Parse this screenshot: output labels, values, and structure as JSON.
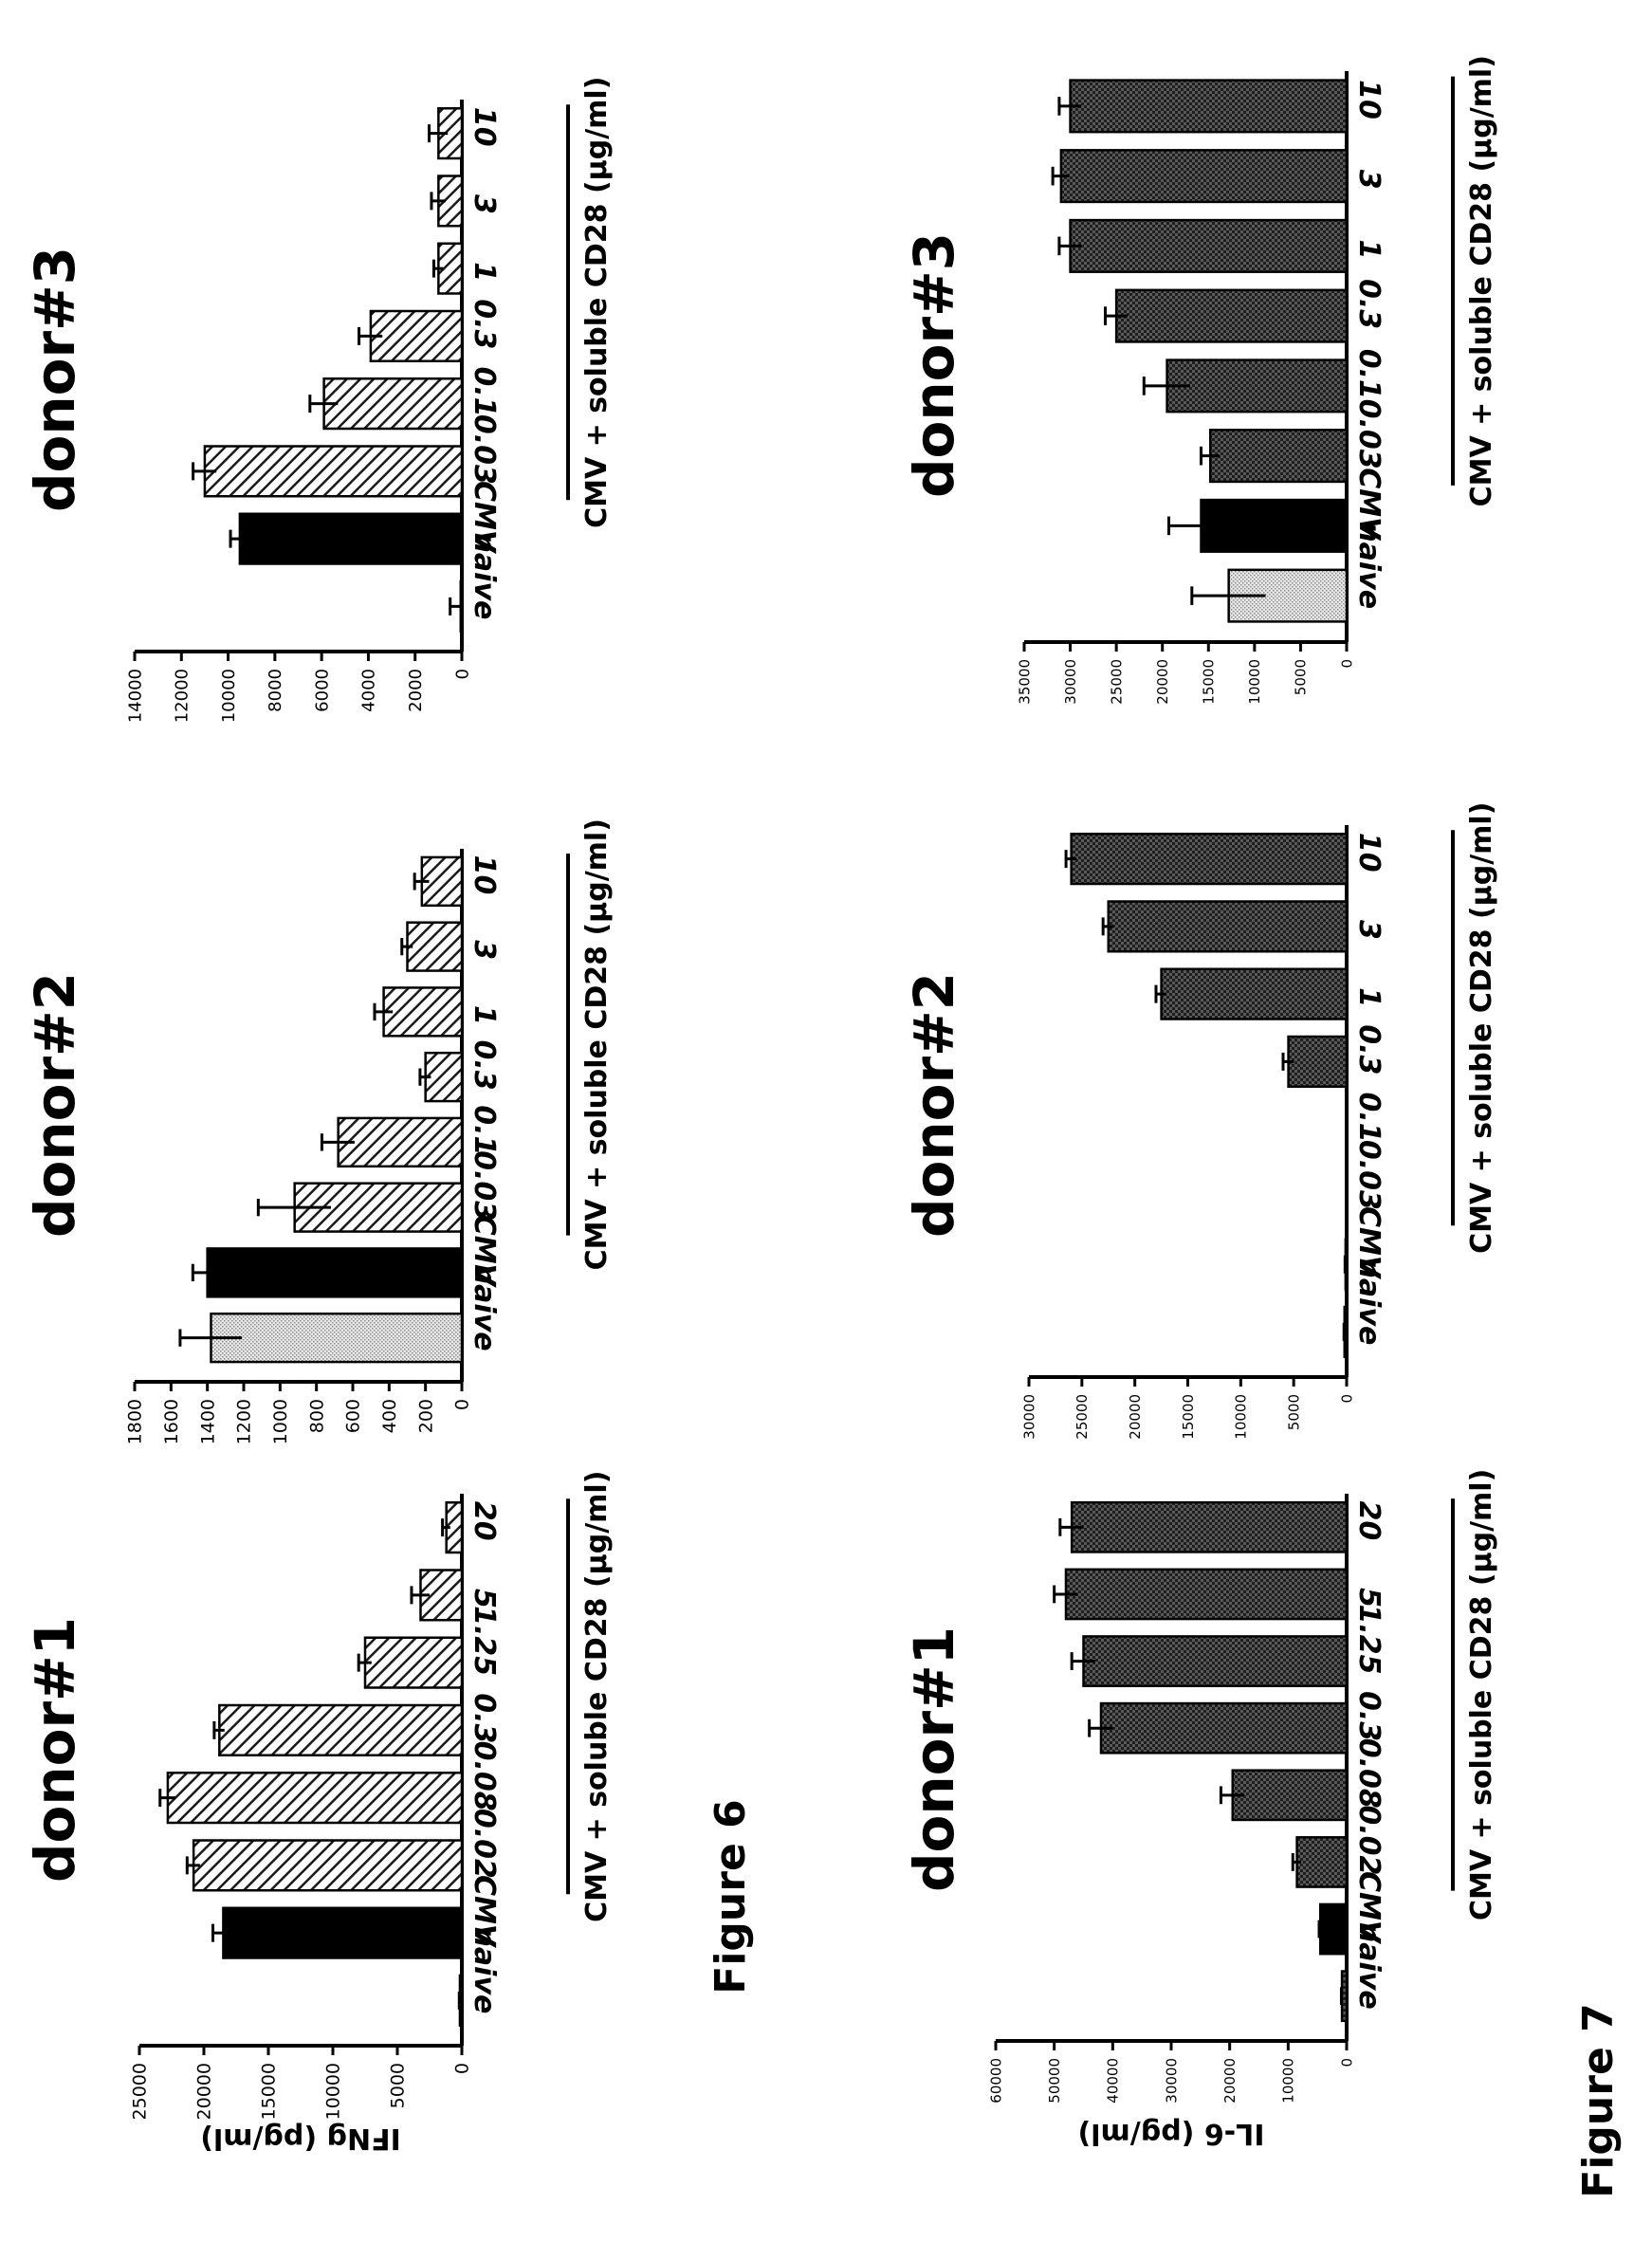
{
  "figures": [
    {
      "caption": "Figure 6"
    },
    {
      "caption": "Figure 7"
    }
  ],
  "colors": {
    "naive": "#d8d8d8",
    "cmv": "#000000",
    "hatch": "#555555",
    "dots": "#444444"
  },
  "chart_data": [
    {
      "type": "bar",
      "title": "donor#1",
      "ylabel": "IFNg (pg/ml)",
      "group_label": "CMV + soluble CD28 (µg/ml)",
      "categories": [
        "naive",
        "CMV",
        "0.02",
        "0.08",
        "0.3",
        "1.25",
        "5",
        "20"
      ],
      "values": [
        150,
        18500,
        20800,
        22800,
        18800,
        7500,
        3200,
        1200
      ],
      "errors": [
        50,
        800,
        500,
        600,
        400,
        500,
        700,
        300
      ],
      "ylim": [
        0,
        25000
      ],
      "yticks": [
        0,
        5000,
        10000,
        15000,
        20000,
        25000
      ],
      "pattern": "hatch",
      "styles": [
        "naive",
        "cmv",
        "hatch",
        "hatch",
        "hatch",
        "hatch",
        "hatch",
        "hatch"
      ]
    },
    {
      "type": "bar",
      "title": "donor#2",
      "ylabel": "",
      "group_label": "CMV + soluble CD28 (µg/ml)",
      "categories": [
        "naive",
        "CMV",
        "0.03",
        "0.1",
        "0.3",
        "1",
        "3",
        "10"
      ],
      "values": [
        1380,
        1400,
        920,
        680,
        200,
        430,
        300,
        220
      ],
      "errors": [
        170,
        80,
        200,
        90,
        30,
        50,
        30,
        40
      ],
      "ylim": [
        0,
        1800
      ],
      "yticks": [
        0,
        200,
        400,
        600,
        800,
        1000,
        1200,
        1400,
        1600,
        1800
      ],
      "pattern": "hatch",
      "styles": [
        "naive",
        "cmv",
        "hatch",
        "hatch",
        "hatch",
        "hatch",
        "hatch",
        "hatch"
      ]
    },
    {
      "type": "bar",
      "title": "donor#3",
      "ylabel": "",
      "group_label": "CMV + soluble CD28 (µg/ml)",
      "categories": [
        "naive",
        "CMV",
        "0.03",
        "0.1",
        "0.3",
        "1",
        "3",
        "10"
      ],
      "values": [
        50,
        9500,
        11000,
        5900,
        3900,
        1000,
        1000,
        1000
      ],
      "errors": [
        450,
        400,
        500,
        600,
        500,
        200,
        300,
        400
      ],
      "ylim": [
        0,
        14000
      ],
      "yticks": [
        0,
        2000,
        4000,
        6000,
        8000,
        10000,
        12000,
        14000
      ],
      "pattern": "hatch",
      "styles": [
        "naive",
        "cmv",
        "hatch",
        "hatch",
        "hatch",
        "hatch",
        "hatch",
        "hatch"
      ]
    },
    {
      "type": "bar",
      "title": "donor#1",
      "ylabel": "IL-6 (pg/ml)",
      "group_label": "CMV + soluble CD28 (µg/ml)",
      "categories": [
        "naive",
        "CMV",
        "0.02",
        "0.08",
        "0.3",
        "1.25",
        "5",
        "20"
      ],
      "values": [
        800,
        4500,
        8500,
        19500,
        42000,
        45000,
        48000,
        47000
      ],
      "errors": [
        100,
        200,
        700,
        2000,
        2000,
        2000,
        2000,
        2000
      ],
      "ylim": [
        0,
        60000
      ],
      "yticks": [
        0,
        10000,
        20000,
        30000,
        40000,
        50000,
        60000
      ],
      "pattern": "dots",
      "styles": [
        "dots",
        "cmv",
        "dots",
        "dots",
        "dots",
        "dots",
        "dots",
        "dots"
      ]
    },
    {
      "type": "bar",
      "title": "donor#2",
      "ylabel": "",
      "group_label": "CMV + soluble CD28 (µg/ml)",
      "categories": [
        "naive",
        "CMV",
        "0.03",
        "0.1",
        "0.3",
        "1",
        "3",
        "10"
      ],
      "values": [
        200,
        100,
        0,
        0,
        5500,
        17500,
        22500,
        26000
      ],
      "errors": [
        50,
        50,
        0,
        0,
        500,
        500,
        500,
        500
      ],
      "ylim": [
        0,
        30000
      ],
      "yticks": [
        0,
        5000,
        10000,
        15000,
        20000,
        25000,
        30000
      ],
      "pattern": "dots",
      "styles": [
        "dots",
        "dots",
        "dots",
        "dots",
        "dots",
        "dots",
        "dots",
        "dots"
      ]
    },
    {
      "type": "bar",
      "title": "donor#3",
      "ylabel": "",
      "group_label": "CMV + soluble CD28 (µg/ml)",
      "categories": [
        "naive",
        "CMV",
        "0.03",
        "0.1",
        "0.3",
        "1",
        "3",
        "10"
      ],
      "values": [
        12800,
        15800,
        14800,
        19500,
        25000,
        30000,
        31000,
        30000
      ],
      "errors": [
        4000,
        3500,
        1000,
        2500,
        1200,
        1200,
        900,
        1200
      ],
      "ylim": [
        0,
        35000
      ],
      "yticks": [
        0,
        5000,
        10000,
        15000,
        20000,
        25000,
        30000,
        35000
      ],
      "pattern": "dots",
      "styles": [
        "naive",
        "cmv",
        "dots",
        "dots",
        "dots",
        "dots",
        "dots",
        "dots"
      ]
    }
  ]
}
